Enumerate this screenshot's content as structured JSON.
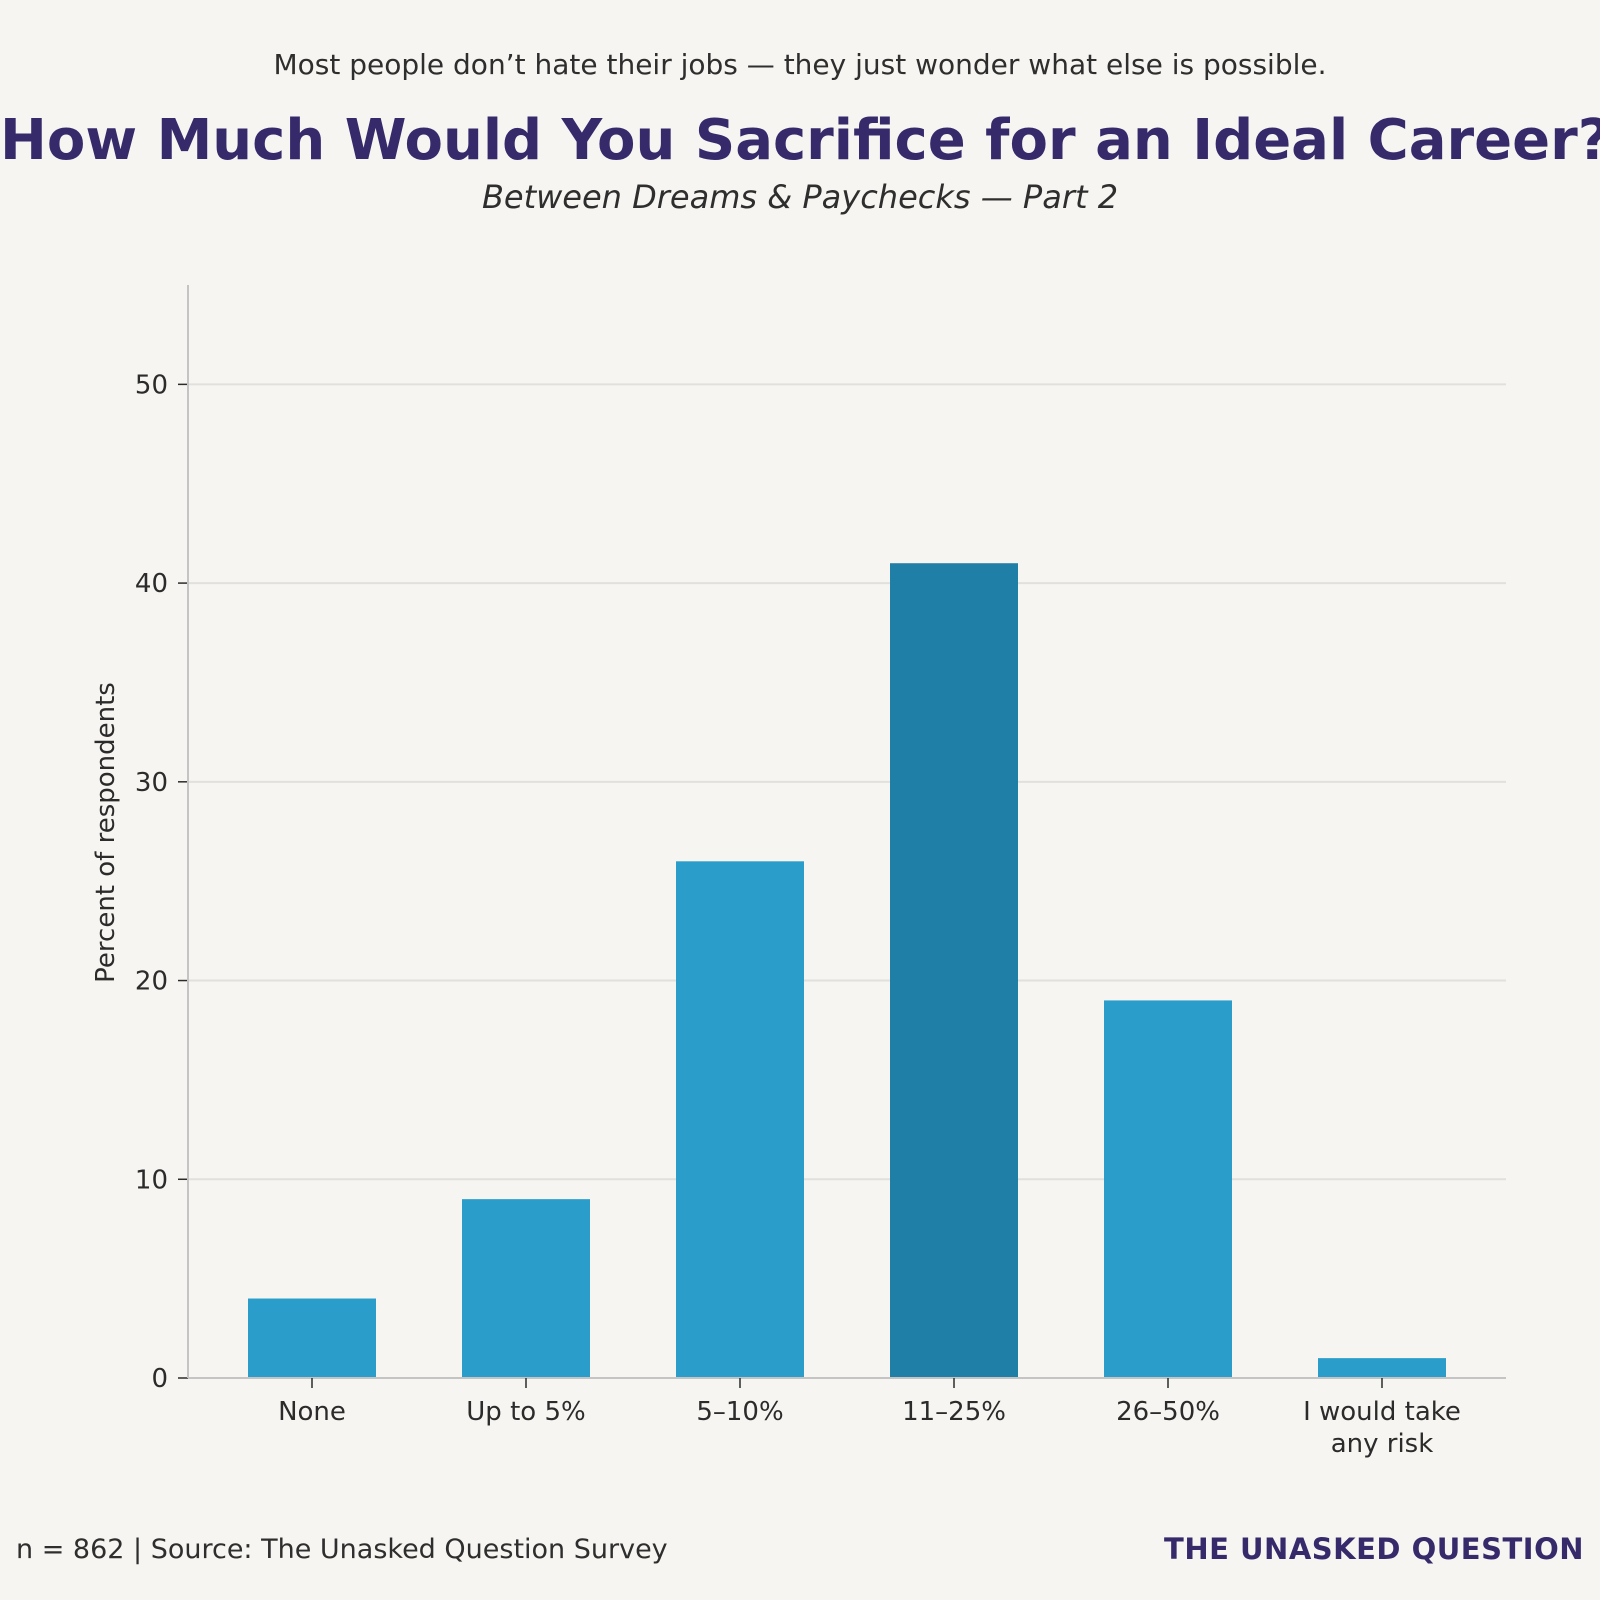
{
  "header": {
    "tagline": "Most people don’t hate their jobs — they just wonder what else is possible.",
    "title": "How Much Would You Sacrifice for an Ideal Career?",
    "subtitle": "Between Dreams & Paychecks — Part 2"
  },
  "footer": {
    "source": "n = 862 | Source: The Unasked Question Survey",
    "brand": "THE UNASKED QUESTION"
  },
  "chart_data": {
    "type": "bar",
    "title": "How Much Would You Sacrifice for an Ideal Career?",
    "subtitle": "Between Dreams & Paychecks — Part 2",
    "xlabel": "",
    "ylabel": "Percent of respondents",
    "categories": [
      [
        "None"
      ],
      [
        "Up to 5%"
      ],
      [
        "5–10%"
      ],
      [
        "11–25%"
      ],
      [
        "26–50%"
      ],
      [
        "I would take",
        "any risk"
      ]
    ],
    "values": [
      4,
      9,
      26,
      41,
      19,
      1
    ],
    "ylim": [
      0,
      55
    ],
    "yticks": [
      0,
      10,
      20,
      30,
      40,
      50
    ],
    "grid": "horizontal",
    "colors": {
      "bar": "#2a9dca",
      "highlight_bar": "#1f7fa6",
      "highlight_index": 3,
      "grid": "#e2e0dd",
      "axis": "#c4c4c4"
    }
  }
}
